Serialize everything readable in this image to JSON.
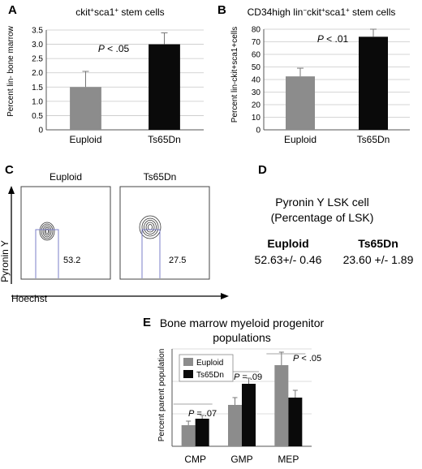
{
  "panels": {
    "A": {
      "letter": "A",
      "title": "ckit+sca1+ stem cells",
      "ylabel": "Percent lin- bone marrow",
      "pvalue": "P < .05"
    },
    "B": {
      "letter": "B",
      "title": "CD34high lin−ckit+sca1+ stem cells",
      "ylabel": "Percent lin-ckit+sca1+cells",
      "pvalue": "P < .01"
    },
    "C": {
      "letter": "C",
      "labels": [
        "Euploid",
        "Ts65Dn"
      ],
      "values": [
        "53.2",
        "27.5"
      ],
      "yaxis": "Pyronin Y",
      "xaxis": "Hoechst"
    },
    "D": {
      "letter": "D",
      "title_line1": "Pyronin Y LSK cell",
      "title_line2": "(Percentage of LSK)",
      "col1_head": "Euploid",
      "col1_val": "52.63+/- 0.46",
      "col2_head": "Ts65Dn",
      "col2_val": "23.60 +/- 1.89"
    },
    "E": {
      "letter": "E",
      "title_line1": "Bone marrow myeloid progenitor",
      "title_line2": "populations",
      "ylabel": "Percent parent population",
      "pvalues": [
        "P = .07",
        "P = .09",
        "P < .05"
      ]
    }
  },
  "colors": {
    "euploid": "#8c8c8c",
    "ts65dn": "#0a0a0a"
  },
  "chart_data": [
    {
      "panel": "A",
      "type": "bar",
      "categories": [
        "Euploid",
        "Ts65Dn"
      ],
      "values": [
        1.5,
        3.0
      ],
      "errors": [
        0.55,
        0.4
      ],
      "ylim": [
        0,
        3.5
      ],
      "yticks": [
        0,
        0.5,
        1.0,
        1.5,
        2.0,
        2.5,
        3.0,
        3.5
      ],
      "ytick_labels": [
        "0",
        "0.5",
        "1.0",
        "1.5",
        "2.0",
        "2.5",
        "3.0",
        "3.5"
      ],
      "grid": true
    },
    {
      "panel": "B",
      "type": "bar",
      "categories": [
        "Euploid",
        "Ts65Dn"
      ],
      "values": [
        42.5,
        74
      ],
      "errors": [
        6.5,
        6
      ],
      "ylim": [
        0,
        80
      ],
      "yticks": [
        0,
        10,
        20,
        30,
        40,
        50,
        60,
        70,
        80
      ],
      "ytick_labels": [
        "0",
        "10",
        "20",
        "30",
        "40",
        "50",
        "60",
        "70",
        "80"
      ],
      "grid": true
    },
    {
      "panel": "E",
      "type": "bar",
      "categories": [
        "CMP",
        "GMP",
        "MEP"
      ],
      "series": [
        {
          "name": "Euploid",
          "values": [
            13,
            25.5,
            50
          ],
          "errors": [
            2.5,
            4.5,
            8
          ]
        },
        {
          "name": "Ts65Dn",
          "values": [
            17,
            38.5,
            30
          ],
          "errors": [
            2,
            3.5,
            4.5
          ]
        }
      ],
      "ylim": [
        0,
        60
      ],
      "legend": "top-left",
      "grid": true
    }
  ]
}
